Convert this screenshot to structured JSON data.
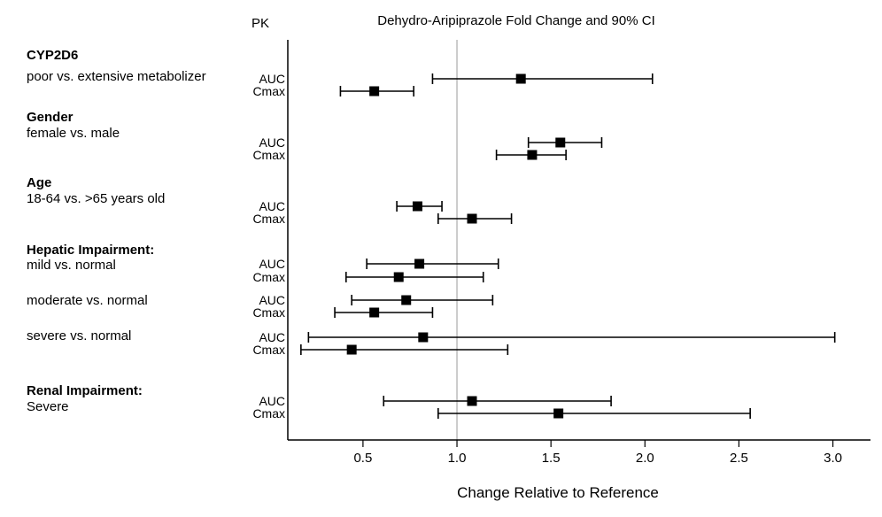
{
  "title": "Dehydro-Aripiprazole Fold Change and 90% CI",
  "pk_header": "PK",
  "xlabel": "Change Relative to Reference",
  "colors": {
    "marker": "#000000",
    "ci_line": "#000000",
    "axis": "#000000",
    "reference_line": "#bcbcbc",
    "background": "#ffffff"
  },
  "chart_data": {
    "type": "forest",
    "title": "Dehydro-Aripiprazole Fold Change and 90% CI",
    "xlabel": "Change Relative to Reference",
    "ci_level": "90% CI",
    "xlim": [
      0.1,
      3.2
    ],
    "x_ticks": [
      0.5,
      1.0,
      1.5,
      2.0,
      2.5,
      3.0
    ],
    "x_tick_labels": [
      "0.5",
      "1.0",
      "1.5",
      "2.0",
      "2.5",
      "3.0"
    ],
    "reference_line": 1.0,
    "legend": "none",
    "grid": "off",
    "groups": [
      {
        "heading": "CYP2D6",
        "comparisons": [
          {
            "label": "poor vs. extensive metabolizer",
            "rows": [
              {
                "pk": "AUC",
                "estimate": 1.34,
                "ci_low": 0.87,
                "ci_high": 2.04
              },
              {
                "pk": "Cmax",
                "estimate": 0.56,
                "ci_low": 0.38,
                "ci_high": 0.77
              }
            ]
          }
        ]
      },
      {
        "heading": "Gender",
        "comparisons": [
          {
            "label": "female vs. male",
            "rows": [
              {
                "pk": "AUC",
                "estimate": 1.55,
                "ci_low": 1.38,
                "ci_high": 1.77
              },
              {
                "pk": "Cmax",
                "estimate": 1.4,
                "ci_low": 1.21,
                "ci_high": 1.58
              }
            ]
          }
        ]
      },
      {
        "heading": "Age",
        "comparisons": [
          {
            "label": "18-64 vs. >65 years old",
            "rows": [
              {
                "pk": "AUC",
                "estimate": 0.79,
                "ci_low": 0.68,
                "ci_high": 0.92
              },
              {
                "pk": "Cmax",
                "estimate": 1.08,
                "ci_low": 0.9,
                "ci_high": 1.29
              }
            ]
          }
        ]
      },
      {
        "heading": "Hepatic Impairment:",
        "comparisons": [
          {
            "label": "mild vs. normal",
            "rows": [
              {
                "pk": "AUC",
                "estimate": 0.8,
                "ci_low": 0.52,
                "ci_high": 1.22
              },
              {
                "pk": "Cmax",
                "estimate": 0.69,
                "ci_low": 0.41,
                "ci_high": 1.14
              }
            ]
          },
          {
            "label": "moderate vs. normal",
            "rows": [
              {
                "pk": "AUC",
                "estimate": 0.73,
                "ci_low": 0.44,
                "ci_high": 1.19
              },
              {
                "pk": "Cmax",
                "estimate": 0.56,
                "ci_low": 0.35,
                "ci_high": 0.87
              }
            ]
          },
          {
            "label": "severe vs. normal",
            "rows": [
              {
                "pk": "AUC",
                "estimate": 0.82,
                "ci_low": 0.21,
                "ci_high": 3.01
              },
              {
                "pk": "Cmax",
                "estimate": 0.44,
                "ci_low": 0.17,
                "ci_high": 1.27
              }
            ]
          }
        ]
      },
      {
        "heading": "Renal Impairment:",
        "comparisons": [
          {
            "label": "Severe",
            "rows": [
              {
                "pk": "AUC",
                "estimate": 1.08,
                "ci_low": 0.61,
                "ci_high": 1.82
              },
              {
                "pk": "Cmax",
                "estimate": 1.54,
                "ci_low": 0.9,
                "ci_high": 2.56
              }
            ]
          }
        ]
      }
    ]
  }
}
